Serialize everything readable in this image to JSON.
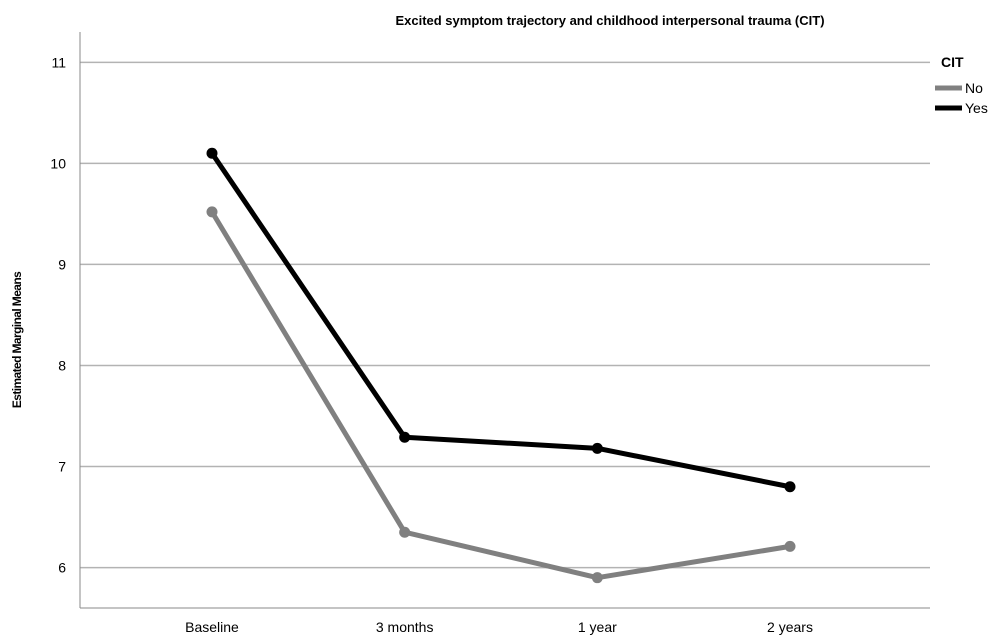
{
  "chart_data": {
    "type": "line",
    "title": "Excited symptom trajectory and childhood interpersonal trauma (CIT)",
    "xlabel": "",
    "ylabel": "Estimated Marginal Means",
    "categories": [
      "Baseline",
      "3 months",
      "1 year",
      "2 years"
    ],
    "ylim": [
      5.6,
      11.3
    ],
    "yticks": [
      6,
      7,
      8,
      9,
      10,
      11
    ],
    "grid": true,
    "legend": {
      "title": "CIT",
      "placement": "top-right"
    },
    "series": [
      {
        "name": "No",
        "color": "#808080",
        "values": [
          9.52,
          6.35,
          5.9,
          6.21
        ]
      },
      {
        "name": "Yes",
        "color": "#000000",
        "values": [
          10.1,
          7.29,
          7.18,
          6.8
        ]
      }
    ]
  }
}
